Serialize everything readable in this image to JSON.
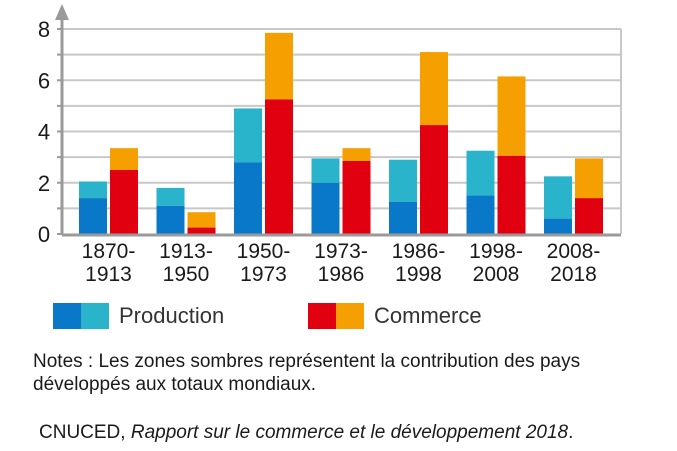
{
  "chart_data": {
    "type": "bar",
    "stacked": true,
    "title": "",
    "xlabel": "",
    "ylabel": "",
    "ylim": [
      0,
      8
    ],
    "yticks": [
      0,
      2,
      4,
      6,
      8
    ],
    "ytick_labels": [
      "0",
      "2",
      "4",
      "6",
      "8"
    ],
    "grid": true,
    "categories": [
      [
        "1870-",
        "1913"
      ],
      [
        "1913-",
        "1950"
      ],
      [
        "1950-",
        "1973"
      ],
      [
        "1973-",
        "1986"
      ],
      [
        "1986-",
        "1998"
      ],
      [
        "1998-",
        "2008"
      ],
      [
        "2008-",
        "2018"
      ]
    ],
    "series": [
      {
        "name": "Production",
        "total": [
          2.05,
          1.8,
          4.9,
          2.95,
          2.9,
          3.25,
          2.25
        ],
        "developed": [
          1.4,
          1.1,
          2.8,
          2.0,
          1.25,
          1.5,
          0.6
        ],
        "color_dark": "#0a78c8",
        "color_light": "#2ab4cc"
      },
      {
        "name": "Commerce",
        "total": [
          3.35,
          0.85,
          7.85,
          3.35,
          7.1,
          6.15,
          2.95
        ],
        "developed": [
          2.5,
          0.25,
          5.25,
          2.85,
          4.25,
          3.05,
          1.4
        ],
        "color_dark": "#e0000f",
        "color_light": "#f5a000"
      }
    ],
    "legend": {
      "placement": "bottom",
      "entries": [
        "Production",
        "Commerce"
      ]
    }
  },
  "notes": "Notes : Les zones sombres représentent la contribution des pays développés aux totaux mondiaux.",
  "source": {
    "author": "CNUCED, ",
    "title": "Rapport sur le commerce et le développement 2018",
    "end": "."
  },
  "colors": {
    "grid": "#c8c8c8",
    "axis": "#9a9a9a"
  }
}
